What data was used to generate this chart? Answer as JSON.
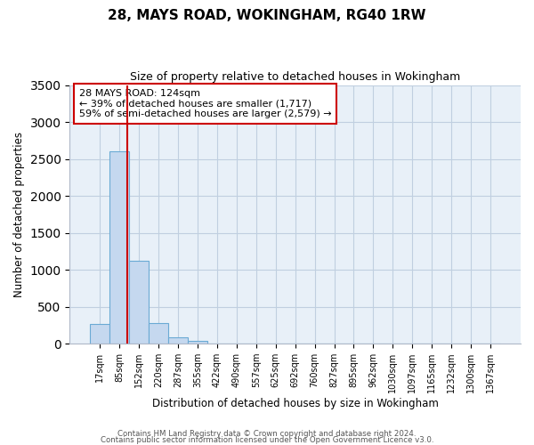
{
  "title": "28, MAYS ROAD, WOKINGHAM, RG40 1RW",
  "subtitle": "Size of property relative to detached houses in Wokingham",
  "xlabel": "Distribution of detached houses by size in Wokingham",
  "ylabel": "Number of detached properties",
  "bar_labels": [
    "17sqm",
    "85sqm",
    "152sqm",
    "220sqm",
    "287sqm",
    "355sqm",
    "422sqm",
    "490sqm",
    "557sqm",
    "625sqm",
    "692sqm",
    "760sqm",
    "827sqm",
    "895sqm",
    "962sqm",
    "1030sqm",
    "1097sqm",
    "1165sqm",
    "1232sqm",
    "1300sqm",
    "1367sqm"
  ],
  "bar_values": [
    270,
    2600,
    1120,
    280,
    85,
    35,
    0,
    0,
    0,
    0,
    0,
    0,
    0,
    0,
    0,
    0,
    0,
    0,
    0,
    0,
    0
  ],
  "bar_color": "#c5d8ef",
  "bar_edge_color": "#6aaad4",
  "vline_x": 1.39,
  "vline_color": "#cc0000",
  "annotation_title": "28 MAYS ROAD: 124sqm",
  "annotation_line1": "← 39% of detached houses are smaller (1,717)",
  "annotation_line2": "59% of semi-detached houses are larger (2,579) →",
  "annotation_box_edge": "#cc0000",
  "ylim": [
    0,
    3500
  ],
  "yticks": [
    0,
    500,
    1000,
    1500,
    2000,
    2500,
    3000,
    3500
  ],
  "footer1": "Contains HM Land Registry data © Crown copyright and database right 2024.",
  "footer2": "Contains public sector information licensed under the Open Government Licence v3.0.",
  "background_color": "#ffffff",
  "plot_bg_color": "#e8f0f8",
  "grid_color": "#c0cfe0"
}
